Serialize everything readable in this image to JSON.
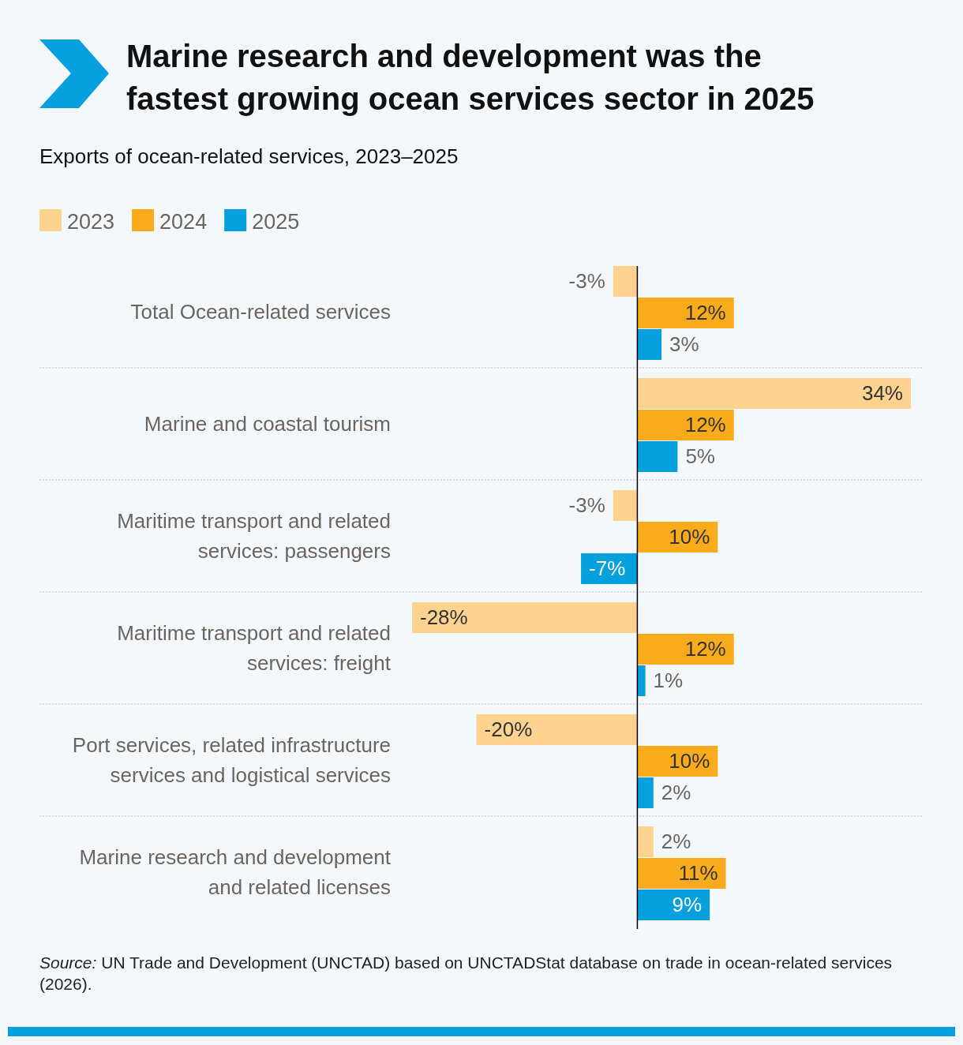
{
  "chart_data": {
    "type": "bar",
    "orientation": "horizontal",
    "title": "Marine research and development was the fastest growing ocean services sector in 2025",
    "subtitle": "Exports of ocean-related services, 2023–2025",
    "categories": [
      "Total Ocean-related services",
      "Marine and coastal tourism",
      "Maritime transport and related services: passengers",
      "Maritime transport and related services: freight",
      "Port services, related infrastructure services and logistical services",
      "Marine research and development and related licenses"
    ],
    "series": [
      {
        "name": "2023",
        "color": "#fdd38f",
        "values": [
          -3,
          34,
          -3,
          -28,
          -20,
          2
        ],
        "value_labels": [
          "-3%",
          "34%",
          "-3%",
          "-28%",
          "-20%",
          "2%"
        ]
      },
      {
        "name": "2024",
        "color": "#f9ab1c",
        "values": [
          12,
          12,
          10,
          12,
          10,
          11
        ],
        "value_labels": [
          "12%",
          "12%",
          "10%",
          "12%",
          "10%",
          "11%"
        ]
      },
      {
        "name": "2025",
        "color": "#05a0dd",
        "values": [
          3,
          5,
          -7,
          1,
          2,
          9
        ],
        "value_labels": [
          "3%",
          "5%",
          "-7%",
          "1%",
          "2%",
          "9%"
        ]
      }
    ],
    "legend": "top left",
    "annotations": [
      "Source: UN Trade and Development (UNCTAD) based on UNCTADStat database on trade in ocean-related services (2026)."
    ]
  }
}
